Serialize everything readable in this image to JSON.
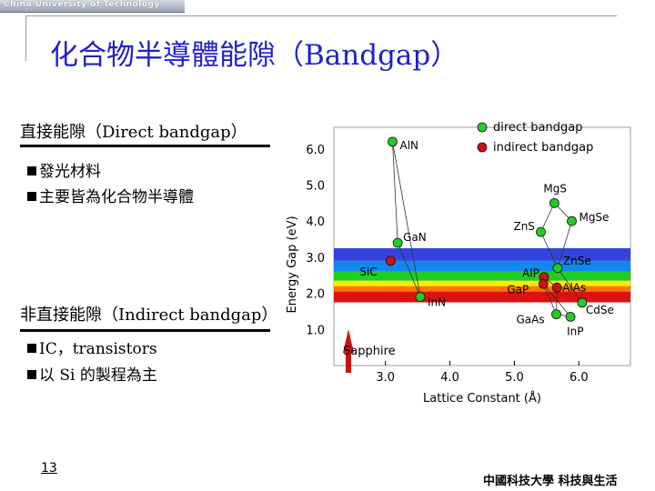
{
  "banner": {
    "text": "China University of Technology"
  },
  "slide": {
    "title": "化合物半導體能隙（Bandgap）",
    "direct": {
      "heading": "直接能隙（Direct bandgap）",
      "bullets": [
        "發光材料",
        "主要皆為化合物半導體"
      ]
    },
    "indirect": {
      "heading": "非直接能隙（Indirect bandgap）",
      "bullets": [
        "IC，transistors",
        "以 Si 的製程為主"
      ]
    },
    "page_number": "13",
    "footer": "中國科技大學 科技與生活"
  },
  "chart_data": {
    "type": "scatter",
    "xlabel": "Lattice Constant (Å)",
    "ylabel": "Energy Gap (eV)",
    "xlim": [
      2.2,
      6.8
    ],
    "ylim": [
      0.0,
      6.6
    ],
    "xticks": [
      3.0,
      4.0,
      5.0,
      6.0
    ],
    "xtick_labels": [
      "3.0",
      "4.0",
      "5.0",
      "6.0"
    ],
    "yticks": [
      1.0,
      2.0,
      3.0,
      4.0,
      5.0,
      6.0
    ],
    "ytick_labels": [
      "1.0",
      "2.0",
      "3.0",
      "4.0",
      "5.0",
      "6.0"
    ],
    "legend": [
      {
        "label": "direct bandgap",
        "color": "#22cc22"
      },
      {
        "label": "indirect bandgap",
        "color": "#cc1111"
      }
    ],
    "spectrum_bands": [
      {
        "from": 1.75,
        "to": 2.05,
        "color": "#dd1111"
      },
      {
        "from": 2.05,
        "to": 2.2,
        "color": "#ff7700"
      },
      {
        "from": 2.2,
        "to": 2.35,
        "color": "#ffee00"
      },
      {
        "from": 2.35,
        "to": 2.6,
        "color": "#22cc22"
      },
      {
        "from": 2.6,
        "to": 2.9,
        "color": "#1188ee"
      },
      {
        "from": 2.9,
        "to": 3.25,
        "color": "#3344dd"
      }
    ],
    "series": [
      {
        "name": "direct bandgap",
        "color": "#22cc22",
        "points": [
          {
            "label": "AlN",
            "x": 3.11,
            "y": 6.2
          },
          {
            "label": "GaN",
            "x": 3.19,
            "y": 3.4
          },
          {
            "label": "InN",
            "x": 3.54,
            "y": 1.9
          },
          {
            "label": "MgS",
            "x": 5.62,
            "y": 4.5
          },
          {
            "label": "ZnS",
            "x": 5.41,
            "y": 3.7
          },
          {
            "label": "MgSe",
            "x": 5.89,
            "y": 4.0
          },
          {
            "label": "ZnSe",
            "x": 5.67,
            "y": 2.7
          },
          {
            "label": "GaAs",
            "x": 5.65,
            "y": 1.42
          },
          {
            "label": "CdSe",
            "x": 6.05,
            "y": 1.74
          },
          {
            "label": "InP",
            "x": 5.87,
            "y": 1.35
          }
        ]
      },
      {
        "name": "indirect bandgap",
        "color": "#cc1111",
        "points": [
          {
            "label": "SiC",
            "x": 3.08,
            "y": 2.9
          },
          {
            "label": "AlP",
            "x": 5.46,
            "y": 2.45
          },
          {
            "label": "GaP",
            "x": 5.45,
            "y": 2.26
          },
          {
            "label": "AlAs",
            "x": 5.66,
            "y": 2.16
          }
        ]
      }
    ],
    "annotations": [
      {
        "label": "Sapphire"
      }
    ]
  }
}
